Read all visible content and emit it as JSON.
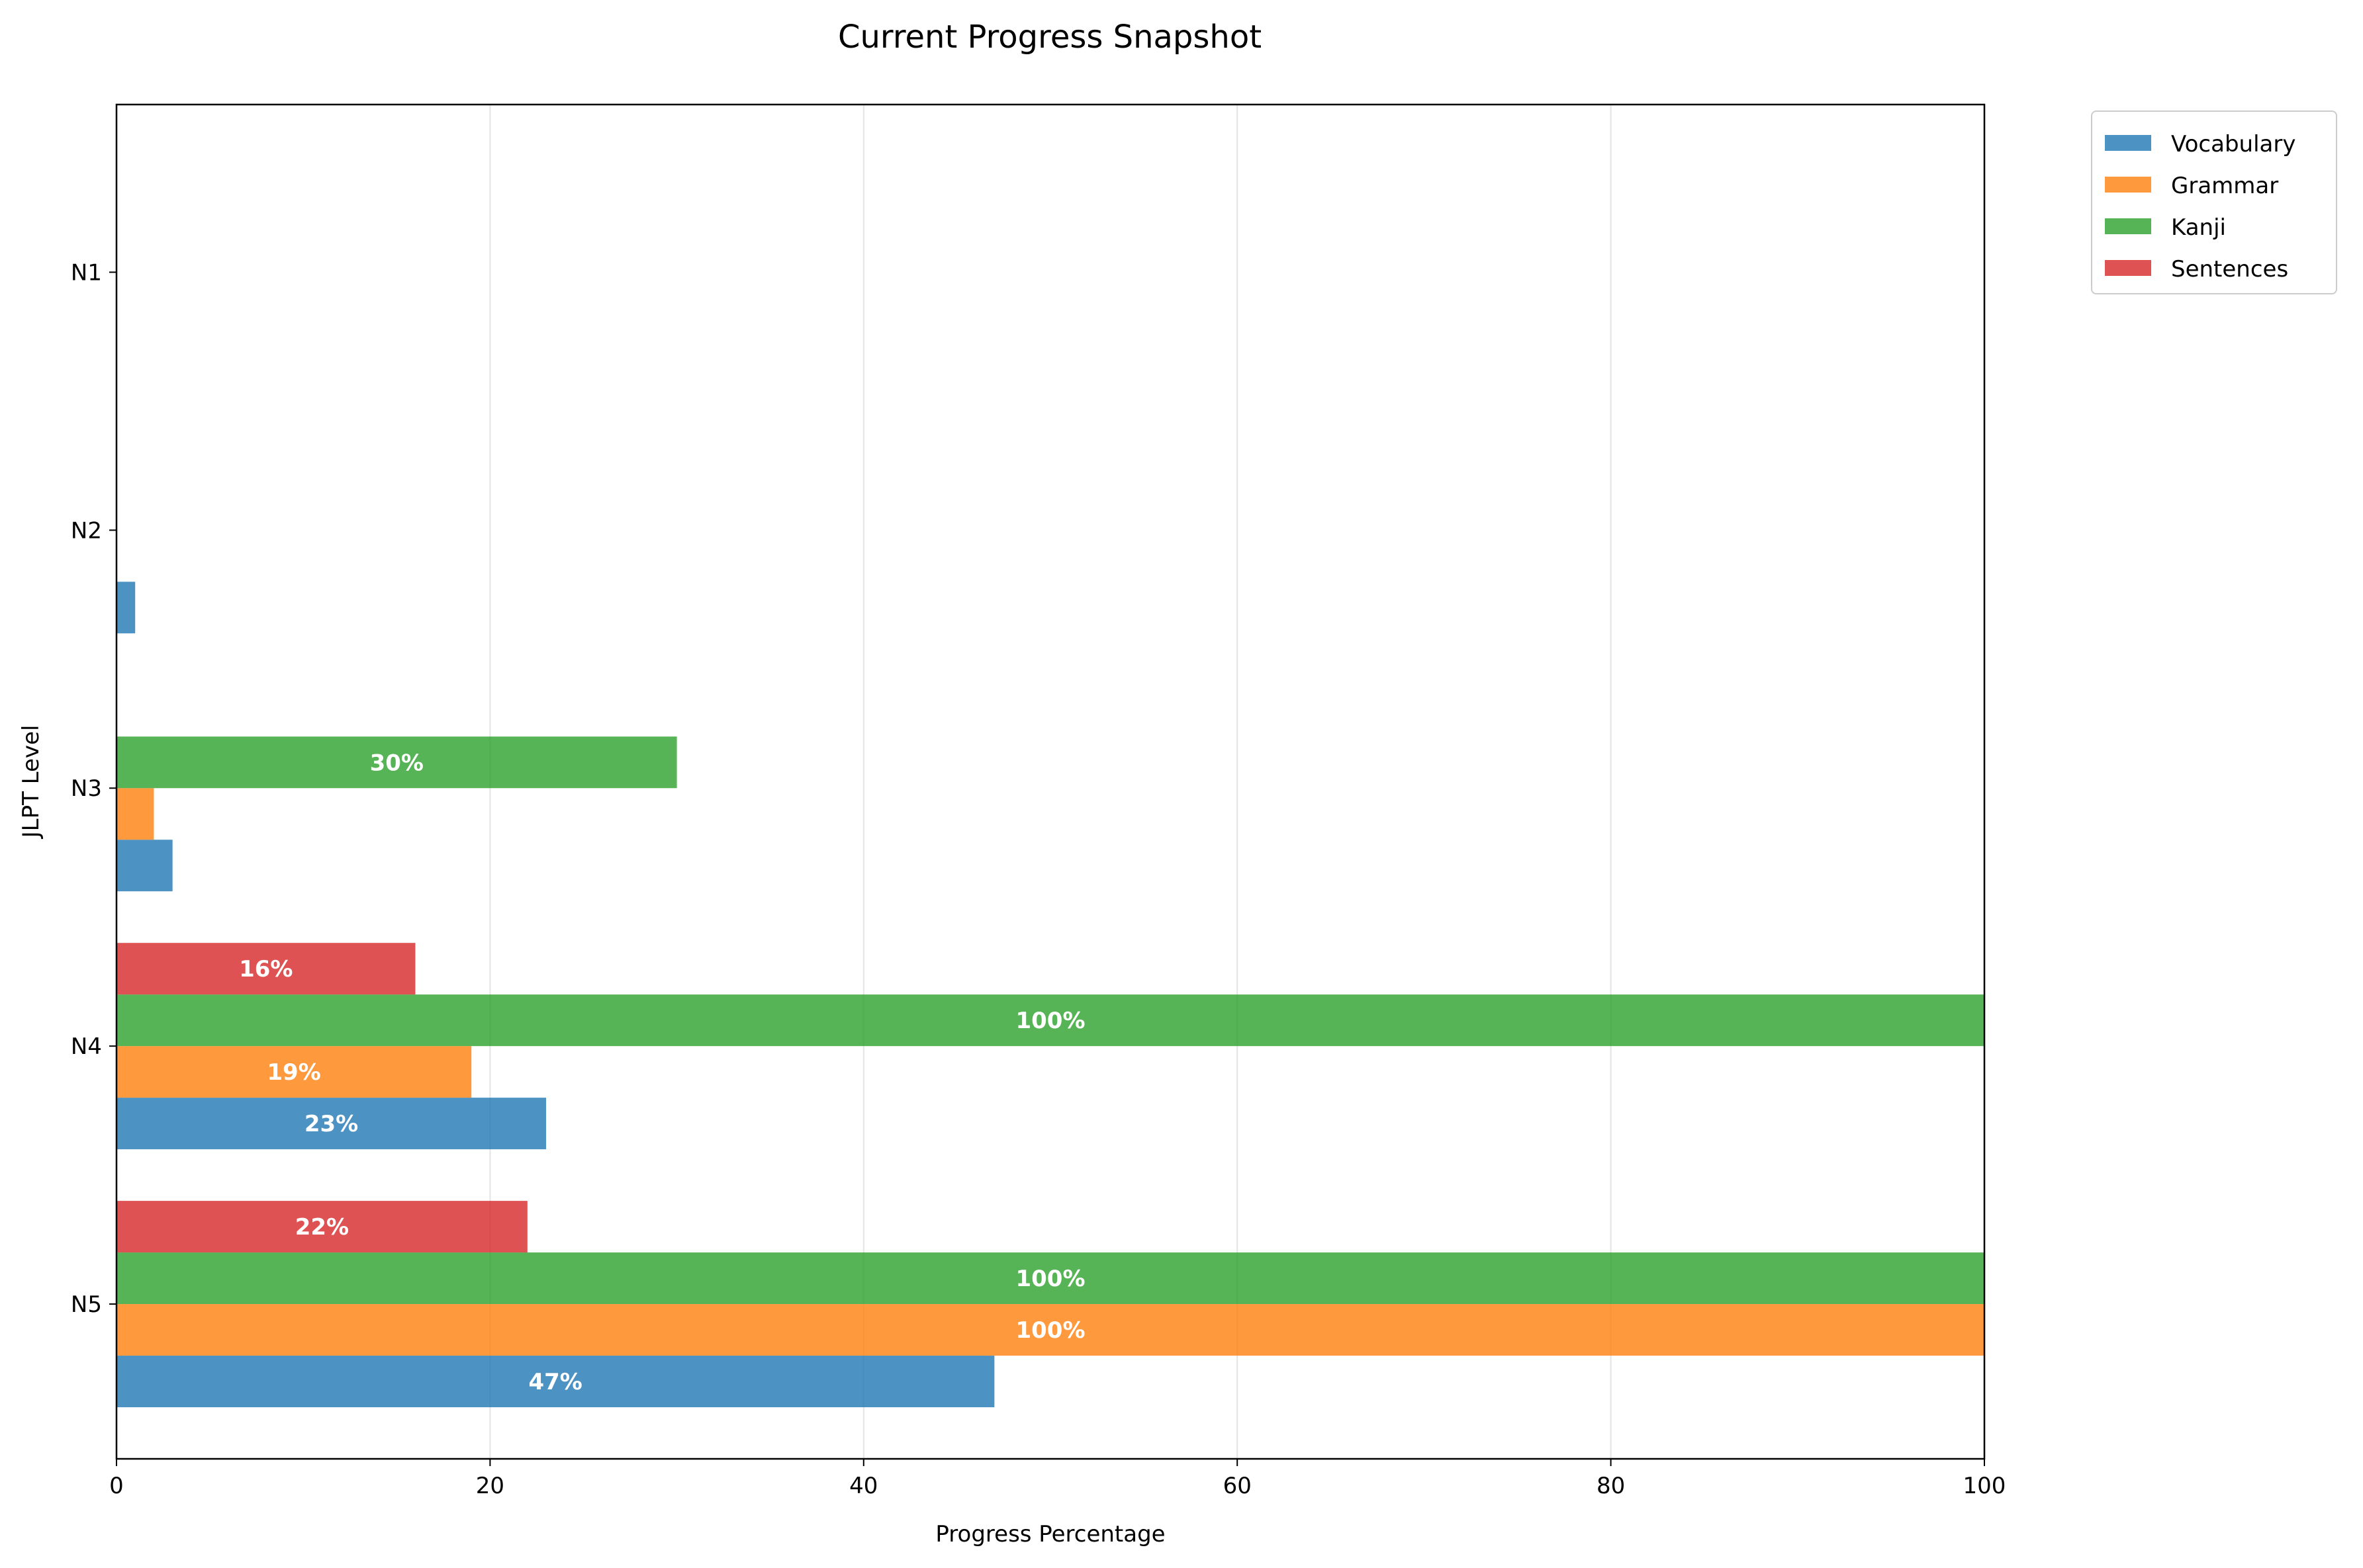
{
  "chart_data": {
    "type": "bar",
    "orientation": "horizontal",
    "title": "Current Progress Snapshot",
    "xlabel": "Progress Percentage",
    "ylabel": "JLPT Level",
    "xlim": [
      0,
      100
    ],
    "xticks": [
      0,
      20,
      40,
      60,
      80,
      100
    ],
    "grid": "vertical",
    "legend_position": "outside-top-right",
    "categories": [
      "N5",
      "N4",
      "N3",
      "N2",
      "N1"
    ],
    "series": [
      {
        "name": "Vocabulary",
        "color": "#1f77b4",
        "values": [
          47,
          23,
          3,
          1,
          0
        ]
      },
      {
        "name": "Grammar",
        "color": "#ff7f0e",
        "values": [
          100,
          19,
          2,
          0,
          0
        ]
      },
      {
        "name": "Kanji",
        "color": "#2ca02c",
        "values": [
          100,
          100,
          30,
          0,
          0
        ]
      },
      {
        "name": "Sentences",
        "color": "#d62728",
        "values": [
          22,
          16,
          0,
          0,
          0
        ]
      }
    ],
    "value_labels_shown_from": 10,
    "value_label_suffix": "%"
  }
}
